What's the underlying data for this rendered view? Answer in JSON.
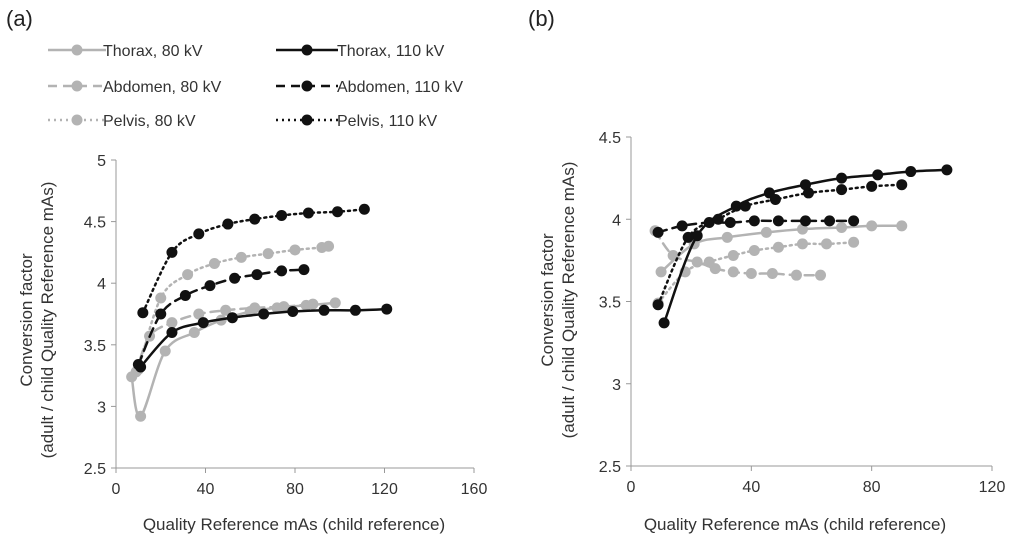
{
  "series_styles": [
    {
      "name": "Thorax, 80 kV",
      "color": "#b3b3b3",
      "dash": "solid"
    },
    {
      "name": "Thorax, 110 kV",
      "color": "#111111",
      "dash": "solid"
    },
    {
      "name": "Abdomen, 80 kV",
      "color": "#b3b3b3",
      "dash": "dashed"
    },
    {
      "name": "Abdomen, 110 kV",
      "color": "#111111",
      "dash": "dashed"
    },
    {
      "name": "Pelvis, 80 kV",
      "color": "#b3b3b3",
      "dash": "dotted"
    },
    {
      "name": "Pelvis, 110 kV",
      "color": "#111111",
      "dash": "dotted"
    }
  ],
  "chart_data": [
    {
      "type": "line",
      "panel_label": "(a)",
      "xlabel": "Quality Reference mAs (child reference)",
      "ylabel_lines": [
        "Conversion factor",
        "(adult / child Quality Reference mAs)"
      ],
      "xlim": [
        0,
        160
      ],
      "ylim": [
        2.5,
        5
      ],
      "xticks": [
        "0",
        "40",
        "80",
        "120",
        "160"
      ],
      "yticks": [
        "2.5",
        "3",
        "3.5",
        "4",
        "4.5",
        "5"
      ],
      "legend": "top",
      "grid": false,
      "series": [
        {
          "name": "Thorax, 80 kV",
          "points": [
            [
              7,
              3.24
            ],
            [
              11,
              2.92
            ],
            [
              22,
              3.45
            ],
            [
              35,
              3.6
            ],
            [
              47,
              3.7
            ],
            [
              60,
              3.77
            ],
            [
              72,
              3.8
            ],
            [
              85,
              3.82
            ],
            [
              98,
              3.84
            ]
          ]
        },
        {
          "name": "Thorax, 110 kV",
          "points": [
            [
              11,
              3.32
            ],
            [
              25,
              3.6
            ],
            [
              39,
              3.68
            ],
            [
              52,
              3.72
            ],
            [
              66,
              3.75
            ],
            [
              79,
              3.77
            ],
            [
              93,
              3.78
            ],
            [
              107,
              3.78
            ],
            [
              121,
              3.79
            ]
          ]
        },
        {
          "name": "Abdomen, 80 kV",
          "points": [
            [
              9,
              3.28
            ],
            [
              15,
              3.57
            ],
            [
              25,
              3.68
            ],
            [
              37,
              3.75
            ],
            [
              49,
              3.78
            ],
            [
              62,
              3.8
            ],
            [
              75,
              3.81
            ],
            [
              88,
              3.83
            ]
          ]
        },
        {
          "name": "Abdomen, 110 kV",
          "points": [
            [
              10,
              3.34
            ],
            [
              20,
              3.75
            ],
            [
              31,
              3.9
            ],
            [
              42,
              3.98
            ],
            [
              53,
              4.04
            ],
            [
              63,
              4.07
            ],
            [
              74,
              4.1
            ],
            [
              84,
              4.11
            ]
          ]
        },
        {
          "name": "Pelvis, 80 kV",
          "points": [
            [
              10,
              3.3
            ],
            [
              20,
              3.88
            ],
            [
              32,
              4.07
            ],
            [
              44,
              4.16
            ],
            [
              56,
              4.21
            ],
            [
              68,
              4.24
            ],
            [
              80,
              4.27
            ],
            [
              92,
              4.29
            ],
            [
              95,
              4.3
            ]
          ]
        },
        {
          "name": "Pelvis, 110 kV",
          "points": [
            [
              12,
              3.76
            ],
            [
              25,
              4.25
            ],
            [
              37,
              4.4
            ],
            [
              50,
              4.48
            ],
            [
              62,
              4.52
            ],
            [
              74,
              4.55
            ],
            [
              86,
              4.57
            ],
            [
              99,
              4.58
            ],
            [
              111,
              4.6
            ]
          ]
        }
      ]
    },
    {
      "type": "line",
      "panel_label": "(b)",
      "xlabel": "Quality Reference mAs (child reference)",
      "ylabel_lines": [
        "Conversion factor",
        "(adult / child Quality Reference mAs)"
      ],
      "xlim": [
        0,
        120
      ],
      "ylim": [
        2.5,
        4.5
      ],
      "xticks": [
        "0",
        "40",
        "80",
        "120"
      ],
      "yticks": [
        "2.5",
        "3",
        "3.5",
        "4",
        "4.5"
      ],
      "legend": "none",
      "grid": false,
      "series": [
        {
          "name": "Thorax, 80 kV",
          "points": [
            [
              10,
              3.68
            ],
            [
              21,
              3.85
            ],
            [
              32,
              3.89
            ],
            [
              45,
              3.92
            ],
            [
              57,
              3.94
            ],
            [
              70,
              3.95
            ],
            [
              80,
              3.96
            ],
            [
              90,
              3.96
            ]
          ]
        },
        {
          "name": "Thorax, 110 kV",
          "points": [
            [
              11,
              3.37
            ],
            [
              22,
              3.9
            ],
            [
              35,
              4.08
            ],
            [
              46,
              4.16
            ],
            [
              58,
              4.21
            ],
            [
              70,
              4.25
            ],
            [
              82,
              4.27
            ],
            [
              93,
              4.29
            ],
            [
              105,
              4.3
            ]
          ]
        },
        {
          "name": "Abdomen, 80 kV",
          "points": [
            [
              8,
              3.93
            ],
            [
              14,
              3.78
            ],
            [
              22,
              3.74
            ],
            [
              28,
              3.7
            ],
            [
              34,
              3.68
            ],
            [
              40,
              3.67
            ],
            [
              47,
              3.67
            ],
            [
              55,
              3.66
            ],
            [
              63,
              3.66
            ]
          ]
        },
        {
          "name": "Abdomen, 110 kV",
          "points": [
            [
              9,
              3.92
            ],
            [
              17,
              3.96
            ],
            [
              26,
              3.98
            ],
            [
              33,
              3.98
            ],
            [
              41,
              3.99
            ],
            [
              49,
              3.99
            ],
            [
              58,
              3.99
            ],
            [
              66,
              3.99
            ],
            [
              74,
              3.99
            ]
          ]
        },
        {
          "name": "Pelvis, 80 kV",
          "points": [
            [
              9,
              3.49
            ],
            [
              18,
              3.68
            ],
            [
              26,
              3.74
            ],
            [
              34,
              3.78
            ],
            [
              41,
              3.81
            ],
            [
              49,
              3.83
            ],
            [
              57,
              3.85
            ],
            [
              65,
              3.85
            ],
            [
              74,
              3.86
            ]
          ]
        },
        {
          "name": "Pelvis, 110 kV",
          "points": [
            [
              9,
              3.48
            ],
            [
              19,
              3.89
            ],
            [
              29,
              4.0
            ],
            [
              38,
              4.08
            ],
            [
              48,
              4.12
            ],
            [
              59,
              4.16
            ],
            [
              70,
              4.18
            ],
            [
              80,
              4.2
            ],
            [
              90,
              4.21
            ]
          ]
        }
      ]
    }
  ]
}
